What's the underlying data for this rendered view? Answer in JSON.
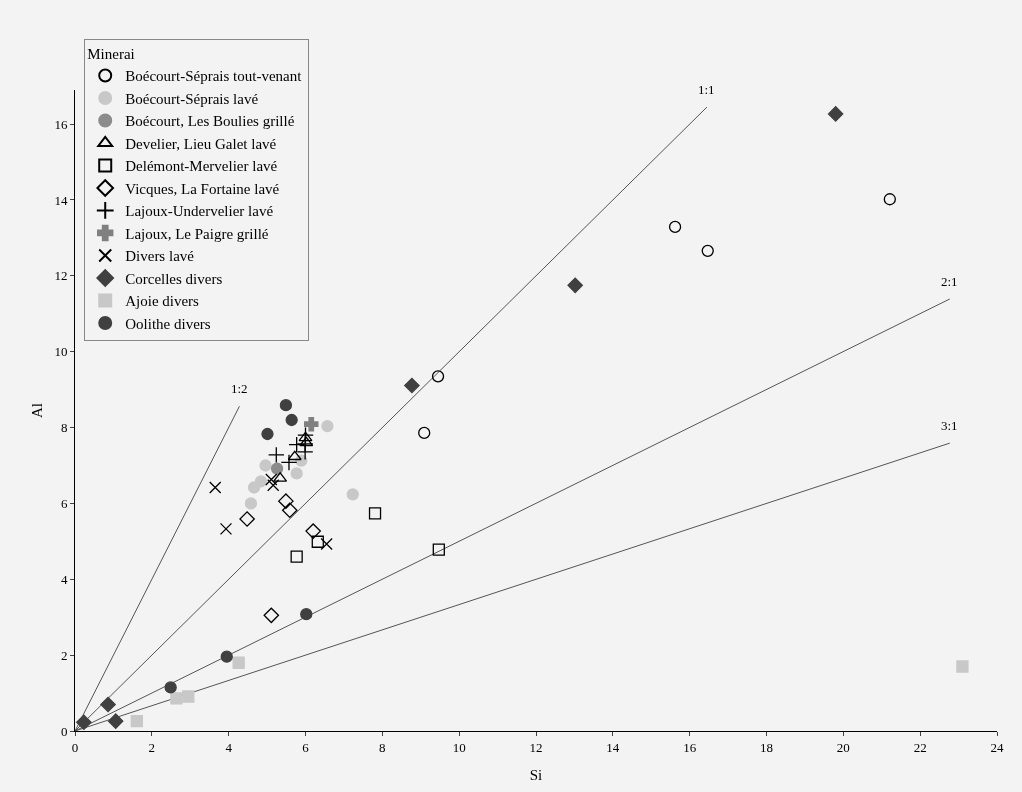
{
  "chart_data": {
    "type": "scatter",
    "xlabel": "Si",
    "ylabel": "Al",
    "legend_title": "Minerai",
    "legend": "top left",
    "grid": false,
    "xlim": [
      0,
      24
    ],
    "xticks": [
      0,
      2,
      4,
      6,
      8,
      10,
      12,
      14,
      16,
      18,
      20,
      22,
      24
    ],
    "ylim": [
      0,
      16.9
    ],
    "yticks": [
      0,
      2,
      4,
      6,
      8,
      10,
      12,
      14,
      16
    ],
    "series": [
      {
        "name": "Boécourt-Séprais tout-venant",
        "color": "#000000",
        "marker": "circle-open",
        "x": [
          9.45,
          9.09,
          15.62,
          16.47,
          21.21
        ],
        "values": [
          9.35,
          7.86,
          13.29,
          12.66,
          14.02
        ]
      },
      {
        "name": "Boécourt-Séprais lavé",
        "color": "#c8c8c8",
        "marker": "circle",
        "x": [
          6.57,
          4.96,
          5.77,
          5.89,
          4.84,
          4.66,
          4.58,
          7.23
        ],
        "values": [
          8.04,
          7.0,
          6.79,
          7.13,
          6.58,
          6.42,
          6.0,
          6.24
        ]
      },
      {
        "name": "Boécourt, Les Boulies grillé",
        "color": "#8c8c8c",
        "marker": "circle",
        "x": [
          5.26
        ],
        "values": [
          6.92
        ]
      },
      {
        "name": "Develier, Lieu Galet lavé",
        "color": "#000000",
        "marker": "triangle-up-open",
        "x": [
          6.0,
          6.02,
          5.72,
          5.34
        ],
        "values": [
          7.73,
          7.6,
          7.23,
          6.66
        ]
      },
      {
        "name": "Delémont-Mervelier lavé",
        "color": "#000000",
        "marker": "square-open",
        "x": [
          7.81,
          6.32,
          5.77,
          9.47
        ],
        "values": [
          5.74,
          4.99,
          4.6,
          4.78
        ]
      },
      {
        "name": "Vicques, La Fortaine lavé",
        "color": "#000000",
        "marker": "diamond-open",
        "x": [
          5.49,
          5.59,
          4.48,
          6.2,
          5.11
        ],
        "values": [
          6.06,
          5.82,
          5.59,
          5.27,
          3.05
        ]
      },
      {
        "name": "Lajoux-Undervelier lavé",
        "color": "#000000",
        "marker": "cross-thin",
        "x": [
          5.24,
          5.57,
          5.77,
          5.99,
          5.99,
          6.0
        ],
        "values": [
          7.28,
          7.08,
          7.55,
          7.57,
          7.36,
          7.8
        ]
      },
      {
        "name": "Lajoux, Le Paigre grillé",
        "color": "#808080",
        "marker": "plus",
        "x": [
          6.15
        ],
        "values": [
          8.09
        ]
      },
      {
        "name": "Divers lavé",
        "color": "#000000",
        "marker": "cross",
        "x": [
          3.65,
          3.93,
          5.11,
          5.16,
          6.55
        ],
        "values": [
          6.42,
          5.33,
          6.63,
          6.48,
          4.93
        ]
      },
      {
        "name": "Corcelles divers",
        "color": "#404040",
        "marker": "diamond",
        "x": [
          0.23,
          0.86,
          1.06,
          8.77,
          13.02,
          19.8
        ],
        "values": [
          0.23,
          0.7,
          0.26,
          9.11,
          11.75,
          16.27
        ]
      },
      {
        "name": "Ajoie divers",
        "color": "#c8c8c8",
        "marker": "square",
        "x": [
          1.61,
          2.64,
          2.95,
          4.26,
          23.1
        ],
        "values": [
          0.26,
          0.86,
          0.91,
          1.8,
          1.7
        ]
      },
      {
        "name": "Oolithe divers",
        "color": "#404040",
        "marker": "circle",
        "x": [
          5.49,
          5.64,
          5.01,
          6.02,
          3.95,
          2.49
        ],
        "values": [
          8.59,
          8.2,
          7.83,
          3.08,
          1.96,
          1.15
        ]
      },
      {
        "name": "1:2",
        "type": "line",
        "color": "#555555",
        "x": [
          0,
          4.28
        ],
        "values": [
          0,
          8.56
        ]
      },
      {
        "name": "1:1",
        "type": "line",
        "color": "#555555",
        "x": [
          0,
          16.45
        ],
        "values": [
          0,
          16.45
        ]
      },
      {
        "name": "2:1",
        "type": "line",
        "color": "#555555",
        "x": [
          0,
          22.77
        ],
        "values": [
          0,
          11.39
        ]
      },
      {
        "name": "3:1",
        "type": "line",
        "color": "#555555",
        "x": [
          0,
          22.77
        ],
        "values": [
          0,
          7.59
        ]
      }
    ]
  }
}
